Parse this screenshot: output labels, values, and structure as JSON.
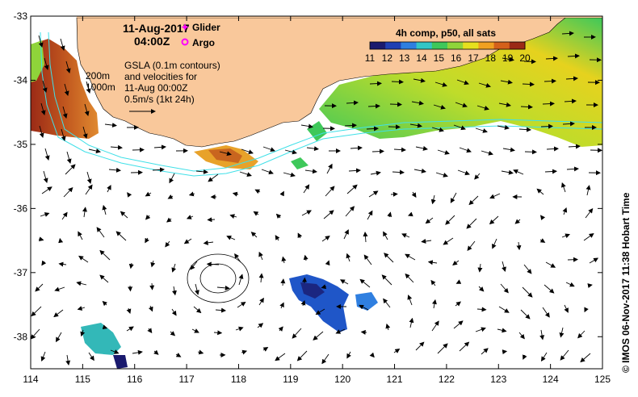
{
  "header": {
    "date": "11-Aug-2017",
    "time": "04:00Z"
  },
  "legend_markers": {
    "glider_label": "Glider",
    "argo_label": "Argo",
    "glider_color": "#ff00ff",
    "argo_color": "#ff00ff"
  },
  "annotations": {
    "depth_200": "200m",
    "depth_1000": "1000m",
    "gsla_line1": "GSLA (0.1m contours)",
    "gsla_line2": "and velocities for",
    "gsla_line3": "11-Aug 00:00Z",
    "scale_label": "0.5m/s (1kt 24h)"
  },
  "colorbar": {
    "title": "4h comp, p50, all sats",
    "min": 11,
    "max": 20,
    "ticks": [
      "11",
      "12",
      "13",
      "14",
      "15",
      "16",
      "17",
      "18",
      "19",
      "20"
    ],
    "colors": [
      "#1a1a6e",
      "#1f3fb3",
      "#2f7fe0",
      "#33c6c6",
      "#3ec85a",
      "#8fd43a",
      "#e6e01e",
      "#f0a020",
      "#d4601a",
      "#9b2a16"
    ]
  },
  "axes": {
    "lon_ticks": [
      "114",
      "115",
      "116",
      "117",
      "118",
      "119",
      "120",
      "121",
      "122",
      "123",
      "124",
      "125"
    ],
    "lat_ticks": [
      "-33",
      "-34",
      "-35",
      "-36",
      "-37",
      "-38"
    ],
    "lon_range": [
      114,
      125
    ],
    "lat_range": [
      -38.5,
      -33
    ]
  },
  "credit": "© IMOS 06-Nov-2017 11:38 Hobart Time",
  "colors": {
    "land": "#f9c89b",
    "contour": "#40e0e8",
    "ocean": "#ffffff"
  }
}
